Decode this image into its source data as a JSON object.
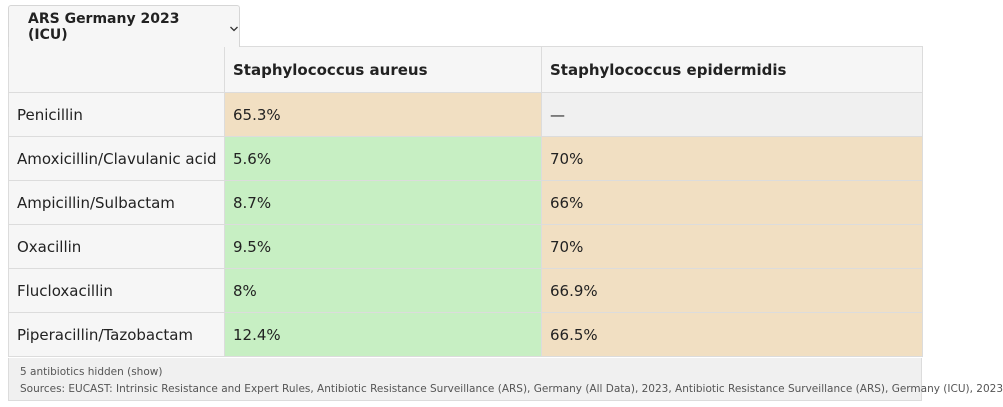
{
  "dataset_selector": {
    "label": "ARS Germany 2023 (ICU)",
    "icon": "chevron-down-icon"
  },
  "table": {
    "columns": [
      "",
      "Staphylococcus aureus",
      "Staphylococcus epidermidis"
    ],
    "rows": [
      {
        "antibiotic": "Penicillin",
        "values": [
          "65.3%",
          "—"
        ],
        "colors": [
          "orange",
          "gray"
        ]
      },
      {
        "antibiotic": "Amoxicillin/Clavulanic acid",
        "values": [
          "5.6%",
          "70%"
        ],
        "colors": [
          "green",
          "orange"
        ]
      },
      {
        "antibiotic": "Ampicillin/Sulbactam",
        "values": [
          "8.7%",
          "66%"
        ],
        "colors": [
          "green",
          "orange"
        ]
      },
      {
        "antibiotic": "Oxacillin",
        "values": [
          "9.5%",
          "70%"
        ],
        "colors": [
          "green",
          "orange"
        ]
      },
      {
        "antibiotic": "Flucloxacillin",
        "values": [
          "8%",
          "66.9%"
        ],
        "colors": [
          "green",
          "orange"
        ]
      },
      {
        "antibiotic": "Piperacillin/Tazobactam",
        "values": [
          "12.4%",
          "66.5%"
        ],
        "colors": [
          "green",
          "orange"
        ]
      }
    ]
  },
  "colors": {
    "green": "#c7efc3",
    "orange": "#f1dfc2",
    "gray": "#f0f0f0",
    "header_bg": "#f6f6f6"
  },
  "footer": {
    "hidden_note": "5 antibiotics hidden (show)",
    "sources": "Sources: EUCAST: Intrinsic Resistance and Expert Rules, Antibiotic Resistance Surveillance (ARS), Germany (All Data), 2023, Antibiotic Resistance Surveillance (ARS), Germany (ICU), 2023"
  }
}
